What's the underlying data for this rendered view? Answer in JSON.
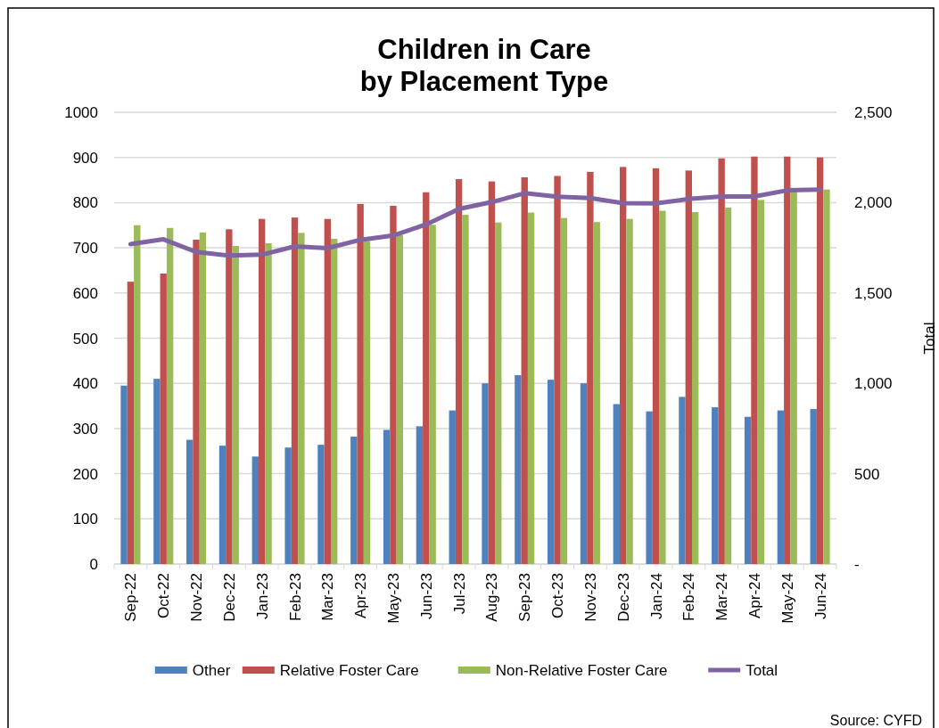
{
  "chart_data": {
    "type": "bar",
    "title": "Children in Care\nby Placement Type",
    "y2label": "Total",
    "annotations": [
      "Source: CYFD"
    ],
    "categories": [
      "Sep-22",
      "Oct-22",
      "Nov-22",
      "Dec-22",
      "Jan-23",
      "Feb-23",
      "Mar-23",
      "Apr-23",
      "May-23",
      "Jun-23",
      "Jul-23",
      "Aug-23",
      "Sep-23",
      "Oct-23",
      "Nov-23",
      "Dec-23",
      "Jan-24",
      "Feb-24",
      "Mar-24",
      "Apr-24",
      "May-24",
      "Jun-24"
    ],
    "series": [
      {
        "name": "Other",
        "color": "#4f81bd",
        "values": [
          395,
          410,
          275,
          262,
          238,
          258,
          264,
          282,
          297,
          305,
          340,
          400,
          418,
          408,
          400,
          354,
          338,
          370,
          347,
          326,
          340,
          343
        ]
      },
      {
        "name": "Relative Foster Care",
        "color": "#c0504d",
        "values": [
          625,
          643,
          718,
          741,
          764,
          767,
          764,
          797,
          793,
          823,
          852,
          847,
          856,
          859,
          868,
          879,
          876,
          871,
          898,
          902,
          902,
          900
        ]
      },
      {
        "name": "Non-Relative Foster Care",
        "color": "#9bbb59",
        "values": [
          750,
          744,
          734,
          704,
          710,
          733,
          720,
          715,
          728,
          751,
          773,
          756,
          778,
          766,
          757,
          764,
          782,
          779,
          789,
          806,
          826,
          829
        ]
      },
      {
        "name": "Total",
        "type": "line",
        "axis": "y2",
        "color": "#8064a2",
        "values": [
          1770,
          1797,
          1727,
          1707,
          1712,
          1758,
          1748,
          1794,
          1818,
          1879,
          1965,
          2003,
          2052,
          2033,
          2025,
          1997,
          1996,
          2020,
          2034,
          2034,
          2068,
          2072
        ]
      }
    ],
    "ylim": [
      0,
      1000
    ],
    "yticks": [
      0,
      100,
      200,
      300,
      400,
      500,
      600,
      700,
      800,
      900,
      1000
    ],
    "y2lim": [
      0,
      2500
    ],
    "y2ticks": [
      {
        "value": 0,
        "label": "-"
      },
      {
        "value": 500,
        "label": "500"
      },
      {
        "value": 1000,
        "label": "1,000"
      },
      {
        "value": 1500,
        "label": "1,500"
      },
      {
        "value": 2000,
        "label": "2,000"
      },
      {
        "value": 2500,
        "label": "2,500"
      }
    ],
    "grid": "y",
    "legend": "bottom",
    "marker": "none"
  }
}
